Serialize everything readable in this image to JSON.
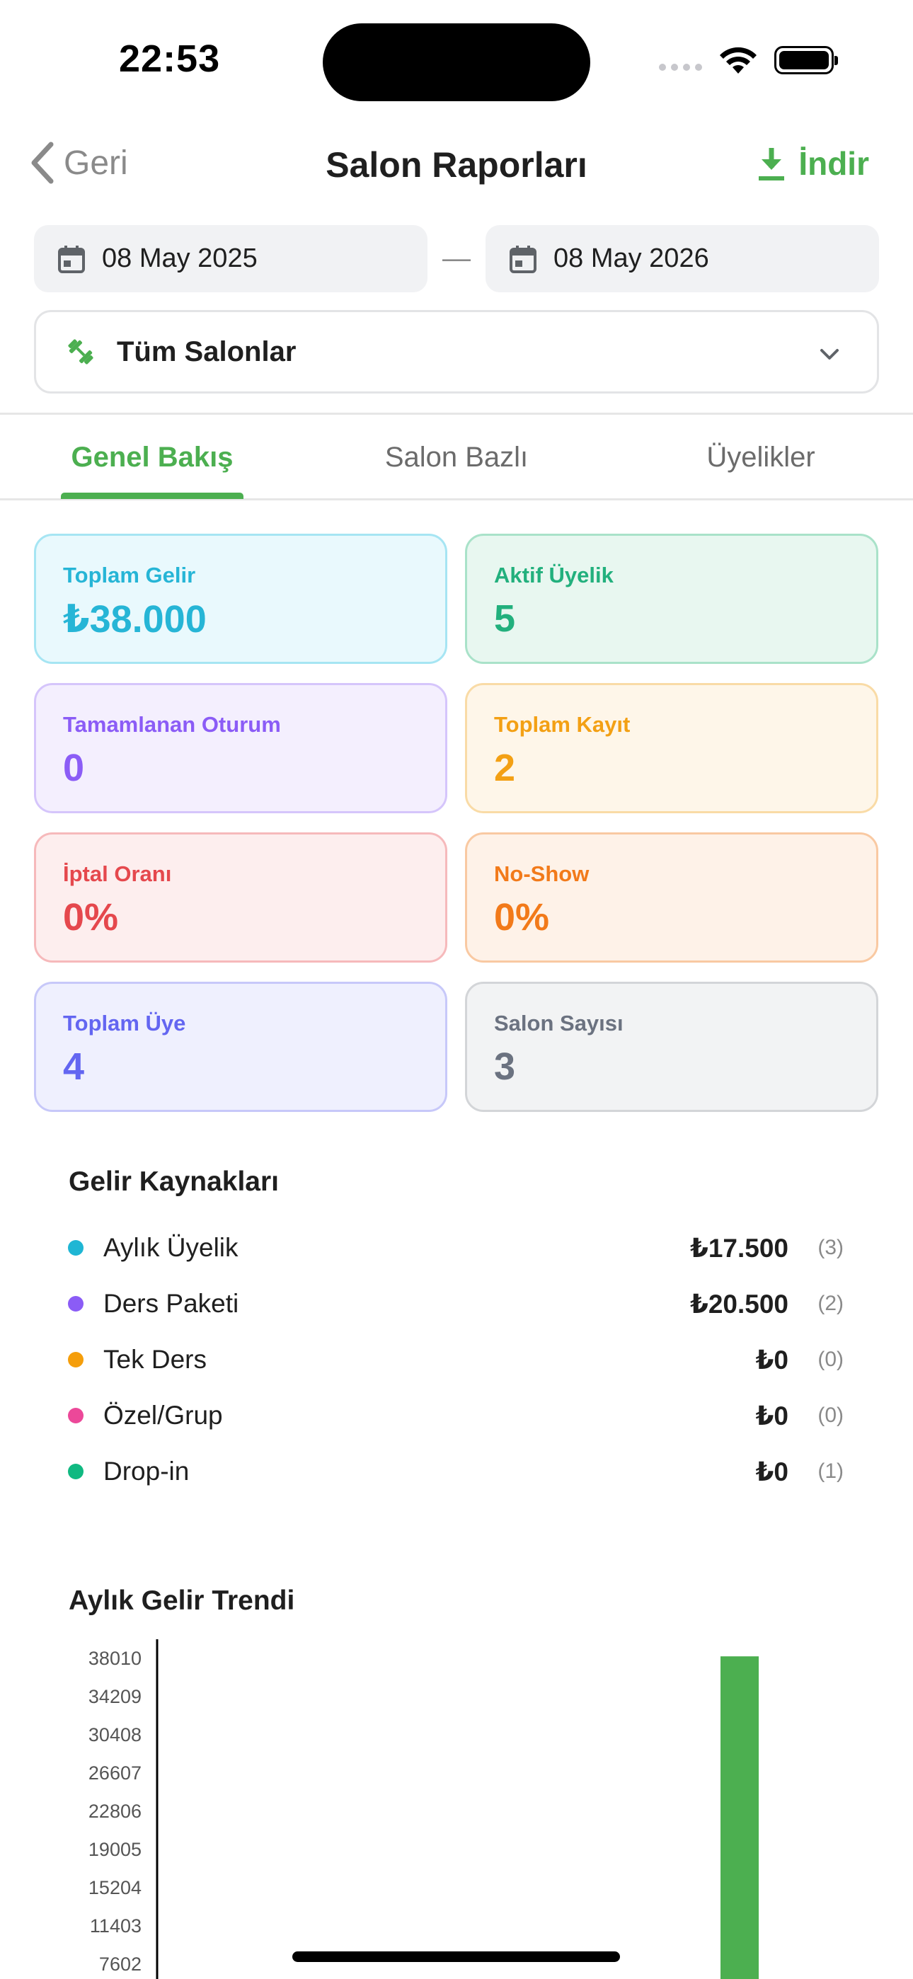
{
  "status_bar": {
    "time": "22:53"
  },
  "nav": {
    "back_label": "Geri",
    "title": "Salon Raporları",
    "download_label": "İndir"
  },
  "date_range": {
    "start": "08 May 2025",
    "separator": "—",
    "end": "08 May 2026"
  },
  "gym_filter": {
    "selected": "Tüm Salonlar"
  },
  "tabs": [
    {
      "label": "Genel Bakış",
      "active": true
    },
    {
      "label": "Salon Bazlı",
      "active": false
    },
    {
      "label": "Üyelikler",
      "active": false
    }
  ],
  "stats": [
    {
      "label": "Toplam Gelir",
      "value": "₺38.000",
      "color": "#26b5d6",
      "bg": "#e9f9fd",
      "border": "#a6e5f3"
    },
    {
      "label": "Aktif Üyelik",
      "value": "5",
      "color": "#22b07d",
      "bg": "#e8f7f0",
      "border": "#a9e2c9"
    },
    {
      "label": "Tamamlanan Oturum",
      "value": "0",
      "color": "#8b5cf6",
      "bg": "#f4effe",
      "border": "#d5c5fb"
    },
    {
      "label": "Toplam Kayıt",
      "value": "2",
      "color": "#f3a014",
      "bg": "#fef6e9",
      "border": "#f9dba6"
    },
    {
      "label": "İptal Oranı",
      "value": "0%",
      "color": "#e5484d",
      "bg": "#fdeeee",
      "border": "#f6b9bb"
    },
    {
      "label": "No-Show",
      "value": "0%",
      "color": "#f27a1a",
      "bg": "#fef2e8",
      "border": "#f9c9a2"
    },
    {
      "label": "Toplam Üye",
      "value": "4",
      "color": "#6366f1",
      "bg": "#eff0fe",
      "border": "#c7c8f9"
    },
    {
      "label": "Salon Sayısı",
      "value": "3",
      "color": "#6b7280",
      "bg": "#f2f3f4",
      "border": "#d3d5d8"
    }
  ],
  "revenue_sources": {
    "title": "Gelir Kaynakları",
    "items": [
      {
        "name": "Aylık Üyelik",
        "amount": "₺17.500",
        "count": "(3)",
        "color": "#1fb6d4"
      },
      {
        "name": "Ders Paketi",
        "amount": "₺20.500",
        "count": "(2)",
        "color": "#8b5cf6"
      },
      {
        "name": "Tek Ders",
        "amount": "₺0",
        "count": "(0)",
        "color": "#f59e0b"
      },
      {
        "name": "Özel/Grup",
        "amount": "₺0",
        "count": "(0)",
        "color": "#ec4899"
      },
      {
        "name": "Drop-in",
        "amount": "₺0",
        "count": "(1)",
        "color": "#10b981"
      }
    ]
  },
  "trend_title": "Aylık Gelir Trendi",
  "chart_data": {
    "type": "bar",
    "yticks": [
      38010,
      34209,
      30408,
      26607,
      22806,
      19005,
      15204,
      11403,
      7602
    ],
    "ylim": [
      0,
      38010
    ],
    "values": [
      0,
      0,
      0,
      0,
      0,
      0,
      0,
      0,
      0,
      0,
      0,
      38000
    ],
    "bar_color": "#4CAF50"
  }
}
